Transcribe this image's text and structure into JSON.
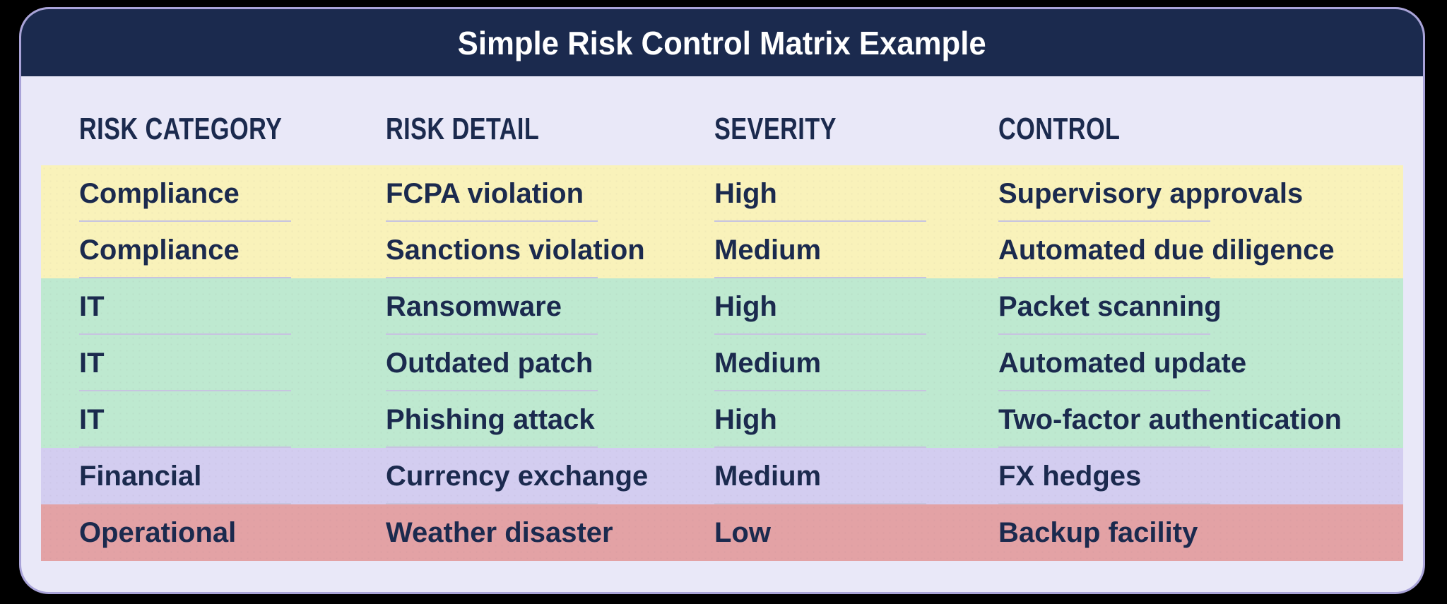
{
  "title": "Simple Risk Control Matrix Example",
  "chart_data": {
    "type": "table",
    "title": "Simple Risk Control Matrix Example",
    "columns": [
      "RISK CATEGORY",
      "RISK DETAIL",
      "SEVERITY",
      "CONTROL"
    ],
    "rows": [
      {
        "risk_category": "Compliance",
        "risk_detail": "FCPA violation",
        "severity": "High",
        "control": "Supervisory approvals",
        "band_color": "#f9f2ba"
      },
      {
        "risk_category": "Compliance",
        "risk_detail": "Sanctions violation",
        "severity": "Medium",
        "control": "Automated due diligence",
        "band_color": "#f9f2ba"
      },
      {
        "risk_category": "IT",
        "risk_detail": "Ransomware",
        "severity": "High",
        "control": "Packet scanning",
        "band_color": "#bee9d0"
      },
      {
        "risk_category": "IT",
        "risk_detail": "Outdated patch",
        "severity": "Medium",
        "control": "Automated update",
        "band_color": "#bee9d0"
      },
      {
        "risk_category": "IT",
        "risk_detail": "Phishing attack",
        "severity": "High",
        "control": "Two-factor authentication",
        "band_color": "#bee9d0"
      },
      {
        "risk_category": "Financial",
        "risk_detail": "Currency exchange",
        "severity": "Medium",
        "control": "FX hedges",
        "band_color": "#d3cdf0"
      },
      {
        "risk_category": "Operational",
        "risk_detail": "Weather disaster",
        "severity": "Low",
        "control": "Backup facility",
        "band_color": "#e3a2a5"
      }
    ],
    "row_groups": [
      {
        "label": "Compliance",
        "color": "#f9f2ba",
        "row_indexes": [
          0,
          1
        ]
      },
      {
        "label": "IT",
        "color": "#bee9d0",
        "row_indexes": [
          2,
          3,
          4
        ]
      },
      {
        "label": "Financial",
        "color": "#d3cdf0",
        "row_indexes": [
          5
        ]
      },
      {
        "label": "Operational",
        "color": "#e3a2a5",
        "row_indexes": [
          6
        ]
      }
    ],
    "layout": {
      "grid": "off",
      "legend": "none",
      "header_bar_color": "#1b2a4e"
    }
  },
  "colors": {
    "outer_background": "#000000",
    "card_background": "#e9e8f8",
    "card_border": "#a9a3d8",
    "header_bar": "#1b2a4e",
    "title_text": "#ffffff",
    "body_text": "#1b2a4e",
    "cell_underline": "#c7c4e0",
    "band_yellow": "#f9f2ba",
    "band_green": "#bee9d0",
    "band_purple": "#d3cdf0",
    "band_red": "#e3a2a5"
  }
}
